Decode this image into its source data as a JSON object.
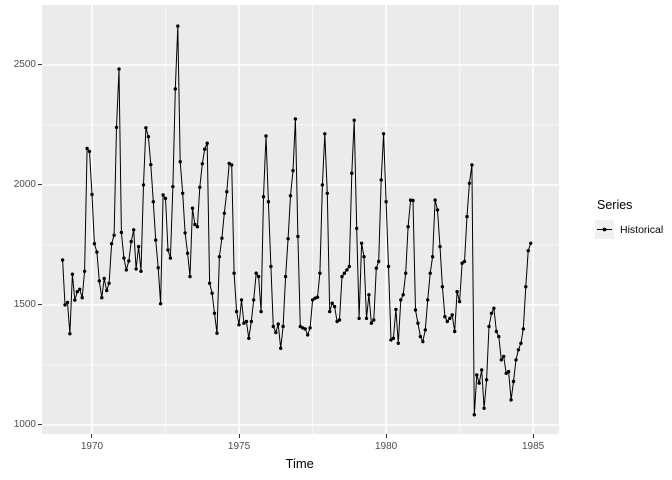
{
  "chart_data": {
    "type": "line",
    "title": "",
    "xlabel": "Time",
    "ylabel": "",
    "legend_title": "Series",
    "legend_position": "right",
    "grid": true,
    "panel_bg": "#EBEBEB",
    "grid_color": "#FFFFFF",
    "tick_text_color": "#4D4D4D",
    "series_color": "#000000",
    "xlim": [
      1968.3,
      1985.88
    ],
    "ylim": [
      962,
      2750
    ],
    "x_ticks": [
      1970,
      1975,
      1980,
      1985
    ],
    "x_minor": [
      1972.5,
      1977.5,
      1982.5
    ],
    "y_ticks": [
      1000,
      1500,
      2000,
      2500
    ],
    "y_minor": [
      1250,
      1750,
      2250
    ],
    "series": [
      {
        "name": "Historical",
        "start_year": 1969,
        "frequency": 12,
        "values": [
          1687,
          1500,
          1510,
          1380,
          1628,
          1520,
          1555,
          1565,
          1530,
          1640,
          2152,
          2140,
          1960,
          1755,
          1720,
          1600,
          1530,
          1610,
          1560,
          1590,
          1755,
          1790,
          2240,
          2483,
          1802,
          1695,
          1646,
          1683,
          1764,
          1813,
          1650,
          1743,
          1640,
          2000,
          2238,
          2201,
          2085,
          1930,
          1770,
          1655,
          1505,
          1958,
          1944,
          1729,
          1695,
          1993,
          2400,
          2662,
          2097,
          1965,
          1800,
          1715,
          1618,
          1903,
          1835,
          1826,
          1990,
          2088,
          2149,
          2174,
          1590,
          1549,
          1465,
          1382,
          1701,
          1778,
          1882,
          1972,
          2090,
          2083,
          1632,
          1472,
          1417,
          1521,
          1424,
          1431,
          1361,
          1431,
          1521,
          1632,
          1618,
          1472,
          1951,
          2204,
          1930,
          1660,
          1410,
          1385,
          1420,
          1319,
          1410,
          1618,
          1776,
          1955,
          2060,
          2275,
          1785,
          1410,
          1404,
          1400,
          1375,
          1404,
          1521,
          1528,
          1532,
          1632,
          2000,
          2213,
          1965,
          1472,
          1507,
          1493,
          1431,
          1437,
          1618,
          1632,
          1646,
          1660,
          2049,
          2270,
          1819,
          1444,
          1757,
          1701,
          1444,
          1542,
          1424,
          1437,
          1653,
          1681,
          2021,
          2213,
          1930,
          1660,
          1354,
          1361,
          1481,
          1340,
          1521,
          1542,
          1632,
          1826,
          1937,
          1935,
          1479,
          1424,
          1368,
          1347,
          1396,
          1521,
          1632,
          1701,
          1937,
          1896,
          1743,
          1576,
          1451,
          1431,
          1444,
          1458,
          1389,
          1555,
          1514,
          1674,
          1681,
          1868,
          2007,
          2083,
          1042,
          1208,
          1174,
          1229,
          1069,
          1188,
          1410,
          1465,
          1486,
          1389,
          1368,
          1271,
          1285,
          1215,
          1222,
          1104,
          1181,
          1271,
          1313,
          1340,
          1400,
          1576,
          1726,
          1757
        ]
      }
    ]
  },
  "axes": {
    "x_title": "Time",
    "x_tick_labels": [
      "1970",
      "1975",
      "1980",
      "1985"
    ],
    "y_tick_labels": [
      "1000",
      "1500",
      "2000",
      "2500"
    ]
  },
  "legend": {
    "title": "Series",
    "items": [
      {
        "label": "Historical",
        "key": "point-line-key"
      }
    ]
  }
}
